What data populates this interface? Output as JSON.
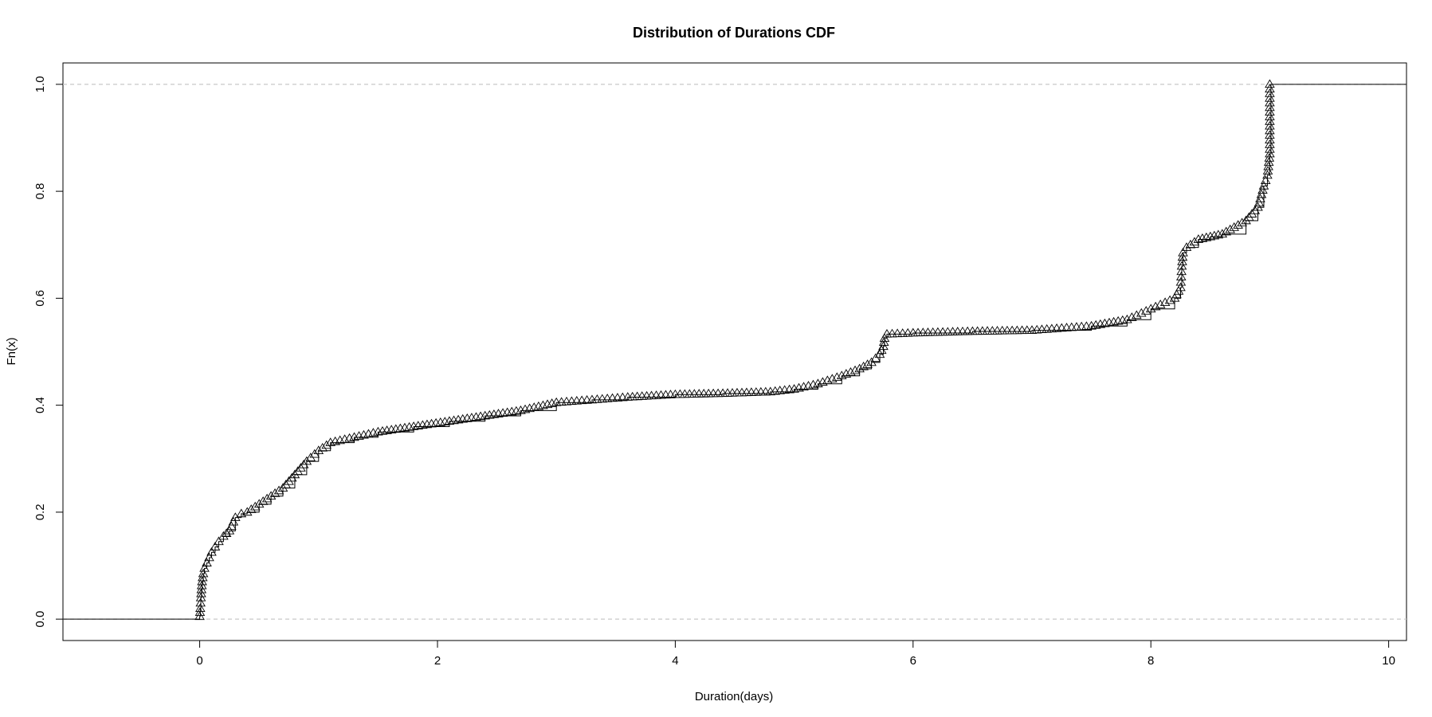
{
  "chart_data": {
    "type": "line",
    "title": "Distribution of Durations CDF",
    "xlabel": "Duration(days)",
    "ylabel": "Fn(x)",
    "xlim": [
      -1.15,
      10.15
    ],
    "ylim": [
      -0.04,
      1.04
    ],
    "x_ticks": [
      0,
      2,
      4,
      6,
      8,
      10
    ],
    "y_ticks": [
      0.0,
      0.2,
      0.4,
      0.6,
      0.8,
      1.0
    ],
    "x_tick_labels": [
      "0",
      "2",
      "4",
      "6",
      "8",
      "10"
    ],
    "y_tick_labels": [
      "0.0",
      "0.2",
      "0.4",
      "0.6",
      "0.8",
      "1.0"
    ],
    "reference_lines_y": [
      0,
      1
    ],
    "grid": false,
    "marker": "open-triangle",
    "series": [
      {
        "x": [
          0.0,
          0.005,
          0.01,
          0.015,
          0.02,
          0.03,
          0.04,
          0.06,
          0.08,
          0.1,
          0.13,
          0.16,
          0.2,
          0.25,
          0.3,
          0.35,
          0.4,
          0.5,
          0.6,
          0.7,
          0.8,
          0.9,
          1.0,
          1.1,
          1.3,
          1.5,
          1.8,
          2.1,
          2.4,
          2.7,
          3.0,
          3.3,
          3.6,
          4.0,
          4.4,
          4.8,
          5.0,
          5.2,
          5.4,
          5.55,
          5.65,
          5.72,
          5.75,
          5.76,
          5.78,
          6.0,
          6.5,
          7.0,
          7.5,
          7.8,
          8.0,
          8.2,
          8.25,
          8.26,
          8.27,
          8.3,
          8.4,
          8.5,
          8.6,
          8.8,
          8.9,
          8.95,
          8.98,
          9.0,
          9.01,
          10.15
        ],
        "y": [
          0.005,
          0.02,
          0.04,
          0.055,
          0.07,
          0.085,
          0.095,
          0.105,
          0.115,
          0.125,
          0.135,
          0.145,
          0.155,
          0.165,
          0.19,
          0.197,
          0.2,
          0.215,
          0.23,
          0.245,
          0.27,
          0.295,
          0.315,
          0.33,
          0.34,
          0.35,
          0.36,
          0.37,
          0.38,
          0.39,
          0.405,
          0.41,
          0.415,
          0.42,
          0.422,
          0.425,
          0.43,
          0.44,
          0.455,
          0.468,
          0.48,
          0.495,
          0.51,
          0.525,
          0.533,
          0.535,
          0.538,
          0.54,
          0.548,
          0.56,
          0.58,
          0.6,
          0.62,
          0.66,
          0.685,
          0.695,
          0.71,
          0.715,
          0.72,
          0.745,
          0.77,
          0.81,
          0.83,
          0.87,
          1.0,
          1.0
        ]
      }
    ]
  }
}
